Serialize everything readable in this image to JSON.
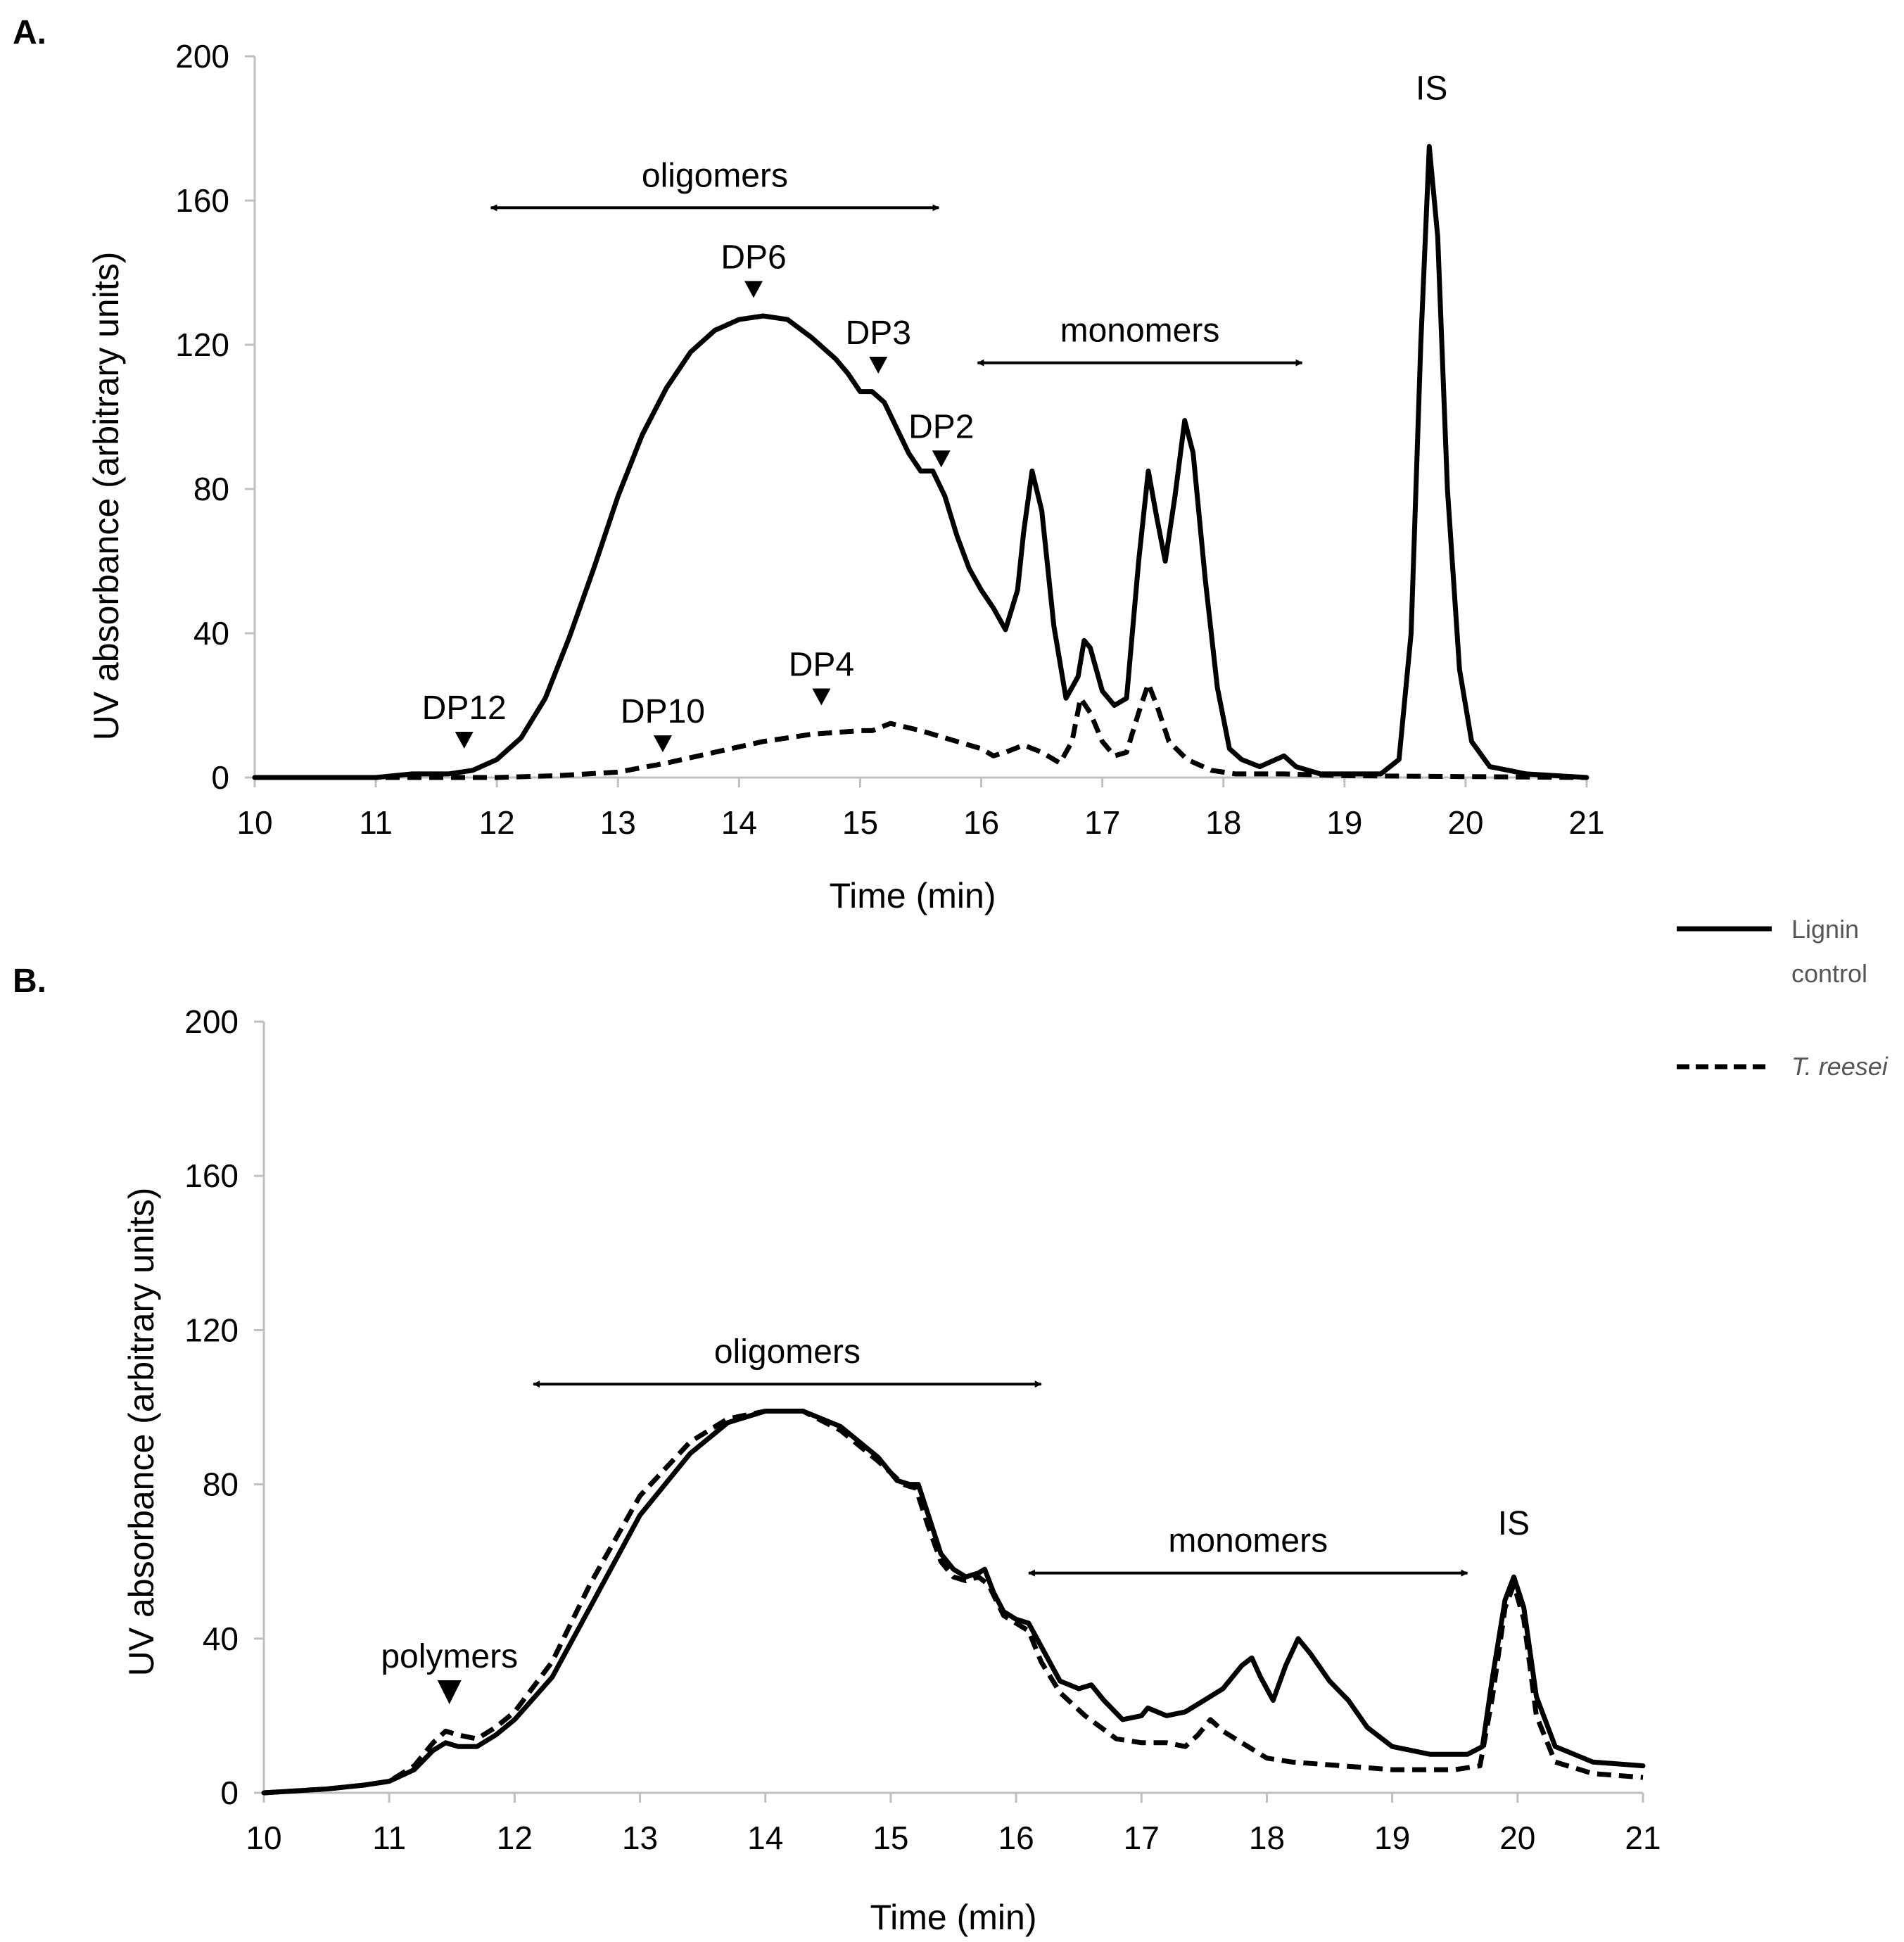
{
  "chart_data": [
    {
      "panel": "A.",
      "type": "line",
      "xlabel": "Time (min)",
      "ylabel": "UV absorbance (arbitrary units)",
      "xlim": [
        10,
        21
      ],
      "ylim": [
        0,
        200
      ],
      "xticks": [
        10,
        11,
        12,
        13,
        14,
        15,
        16,
        17,
        18,
        19,
        20,
        21
      ],
      "yticks": [
        0,
        40,
        80,
        120,
        160,
        200
      ],
      "series": [
        {
          "name": "Lignin control",
          "style": "solid",
          "points": [
            [
              10,
              0
            ],
            [
              11,
              0
            ],
            [
              11.3,
              1
            ],
            [
              11.6,
              1
            ],
            [
              11.8,
              2
            ],
            [
              12,
              5
            ],
            [
              12.2,
              11
            ],
            [
              12.4,
              22
            ],
            [
              12.6,
              39
            ],
            [
              12.8,
              58
            ],
            [
              13,
              78
            ],
            [
              13.2,
              95
            ],
            [
              13.4,
              108
            ],
            [
              13.6,
              118
            ],
            [
              13.8,
              124
            ],
            [
              14,
              127
            ],
            [
              14.2,
              128
            ],
            [
              14.4,
              127
            ],
            [
              14.6,
              122
            ],
            [
              14.8,
              116
            ],
            [
              14.9,
              112
            ],
            [
              15,
              107
            ],
            [
              15.1,
              107
            ],
            [
              15.2,
              104
            ],
            [
              15.3,
              97
            ],
            [
              15.4,
              90
            ],
            [
              15.5,
              85
            ],
            [
              15.6,
              85
            ],
            [
              15.7,
              78
            ],
            [
              15.8,
              67
            ],
            [
              15.9,
              58
            ],
            [
              16,
              52
            ],
            [
              16.1,
              47
            ],
            [
              16.2,
              41
            ],
            [
              16.3,
              52
            ],
            [
              16.35,
              68
            ],
            [
              16.42,
              85
            ],
            [
              16.5,
              74
            ],
            [
              16.6,
              42
            ],
            [
              16.7,
              22
            ],
            [
              16.8,
              28
            ],
            [
              16.85,
              38
            ],
            [
              16.9,
              36
            ],
            [
              17,
              24
            ],
            [
              17.1,
              20
            ],
            [
              17.2,
              22
            ],
            [
              17.3,
              60
            ],
            [
              17.38,
              85
            ],
            [
              17.45,
              72
            ],
            [
              17.52,
              60
            ],
            [
              17.6,
              78
            ],
            [
              17.68,
              99
            ],
            [
              17.75,
              90
            ],
            [
              17.85,
              55
            ],
            [
              17.95,
              25
            ],
            [
              18.05,
              8
            ],
            [
              18.15,
              5
            ],
            [
              18.3,
              3
            ],
            [
              18.5,
              6
            ],
            [
              18.6,
              3
            ],
            [
              18.8,
              1
            ],
            [
              19,
              1
            ],
            [
              19.3,
              1
            ],
            [
              19.45,
              5
            ],
            [
              19.55,
              40
            ],
            [
              19.63,
              120
            ],
            [
              19.7,
              175
            ],
            [
              19.77,
              150
            ],
            [
              19.85,
              80
            ],
            [
              19.95,
              30
            ],
            [
              20.05,
              10
            ],
            [
              20.2,
              3
            ],
            [
              20.5,
              1
            ],
            [
              21,
              0
            ]
          ]
        },
        {
          "name": "T. reesei",
          "style": "dashed",
          "points": [
            [
              10,
              0
            ],
            [
              12,
              0
            ],
            [
              12.5,
              0.5
            ],
            [
              13,
              1.5
            ],
            [
              13.4,
              4
            ],
            [
              13.8,
              7
            ],
            [
              14.2,
              10
            ],
            [
              14.6,
              12
            ],
            [
              15,
              13
            ],
            [
              15.1,
              13
            ],
            [
              15.25,
              15
            ],
            [
              15.5,
              13
            ],
            [
              15.8,
              10
            ],
            [
              16,
              8
            ],
            [
              16.1,
              6
            ],
            [
              16.2,
              7
            ],
            [
              16.35,
              9
            ],
            [
              16.5,
              7
            ],
            [
              16.65,
              4
            ],
            [
              16.75,
              10
            ],
            [
              16.82,
              22
            ],
            [
              16.9,
              18
            ],
            [
              17,
              10
            ],
            [
              17.1,
              6
            ],
            [
              17.2,
              7
            ],
            [
              17.3,
              18
            ],
            [
              17.38,
              26
            ],
            [
              17.45,
              20
            ],
            [
              17.55,
              10
            ],
            [
              17.7,
              5
            ],
            [
              17.9,
              2
            ],
            [
              18.1,
              1
            ],
            [
              18.5,
              1
            ],
            [
              19,
              0.5
            ],
            [
              21,
              0
            ]
          ]
        }
      ],
      "annotations": [
        {
          "text": "oligomers",
          "type": "range",
          "x1": 11.95,
          "x2": 15.65,
          "y": 158
        },
        {
          "text": "monomers",
          "type": "range",
          "x1": 15.97,
          "x2": 18.65,
          "y": 115
        },
        {
          "text": "IS",
          "type": "label",
          "x": 19.72,
          "y": 188
        },
        {
          "text": "DP6",
          "type": "marker",
          "x": 14.12,
          "y": 133
        },
        {
          "text": "DP3",
          "type": "marker",
          "x": 15.15,
          "y": 112
        },
        {
          "text": "DP2",
          "type": "marker",
          "x": 15.67,
          "y": 86
        },
        {
          "text": "DP12",
          "type": "marker",
          "x": 11.73,
          "y": 8
        },
        {
          "text": "DP10",
          "type": "marker",
          "x": 13.37,
          "y": 7
        },
        {
          "text": "DP4",
          "type": "marker",
          "x": 14.68,
          "y": 20
        }
      ]
    },
    {
      "panel": "B.",
      "type": "line",
      "xlabel": "Time (min)",
      "ylabel": "UV absorbance (arbitrary units)",
      "xlim": [
        10,
        21
      ],
      "ylim": [
        0,
        200
      ],
      "xticks": [
        10,
        11,
        12,
        13,
        14,
        15,
        16,
        17,
        18,
        19,
        20,
        21
      ],
      "yticks": [
        0,
        40,
        80,
        120,
        160,
        200
      ],
      "series": [
        {
          "name": "Lignin control",
          "style": "solid",
          "points": [
            [
              10,
              0
            ],
            [
              10.5,
              1
            ],
            [
              10.8,
              2
            ],
            [
              11,
              3
            ],
            [
              11.2,
              6
            ],
            [
              11.35,
              11
            ],
            [
              11.45,
              13
            ],
            [
              11.55,
              12
            ],
            [
              11.7,
              12
            ],
            [
              11.85,
              15
            ],
            [
              12,
              19
            ],
            [
              12.3,
              30
            ],
            [
              12.6,
              48
            ],
            [
              13,
              72
            ],
            [
              13.4,
              88
            ],
            [
              13.7,
              96
            ],
            [
              14,
              99
            ],
            [
              14.3,
              99
            ],
            [
              14.6,
              95
            ],
            [
              14.9,
              87
            ],
            [
              15.05,
              81
            ],
            [
              15.15,
              80
            ],
            [
              15.22,
              80
            ],
            [
              15.3,
              72
            ],
            [
              15.4,
              62
            ],
            [
              15.5,
              58
            ],
            [
              15.6,
              56
            ],
            [
              15.7,
              57
            ],
            [
              15.75,
              58
            ],
            [
              15.82,
              52
            ],
            [
              15.9,
              47
            ],
            [
              16,
              45
            ],
            [
              16.1,
              44
            ],
            [
              16.2,
              38
            ],
            [
              16.35,
              29
            ],
            [
              16.5,
              27
            ],
            [
              16.6,
              28
            ],
            [
              16.7,
              24
            ],
            [
              16.85,
              19
            ],
            [
              17,
              20
            ],
            [
              17.05,
              22
            ],
            [
              17.2,
              20
            ],
            [
              17.35,
              21
            ],
            [
              17.5,
              24
            ],
            [
              17.65,
              27
            ],
            [
              17.8,
              33
            ],
            [
              17.88,
              35
            ],
            [
              17.95,
              30
            ],
            [
              18.05,
              24
            ],
            [
              18.15,
              33
            ],
            [
              18.25,
              40
            ],
            [
              18.35,
              36
            ],
            [
              18.5,
              29
            ],
            [
              18.65,
              24
            ],
            [
              18.8,
              17
            ],
            [
              19,
              12
            ],
            [
              19.3,
              10
            ],
            [
              19.6,
              10
            ],
            [
              19.72,
              12
            ],
            [
              19.8,
              30
            ],
            [
              19.9,
              50
            ],
            [
              19.97,
              56
            ],
            [
              20.05,
              48
            ],
            [
              20.15,
              25
            ],
            [
              20.3,
              12
            ],
            [
              20.6,
              8
            ],
            [
              21,
              7
            ]
          ]
        },
        {
          "name": "T. reesei",
          "style": "dashed",
          "points": [
            [
              10,
              0
            ],
            [
              10.5,
              1
            ],
            [
              10.8,
              2
            ],
            [
              11,
              3
            ],
            [
              11.2,
              7
            ],
            [
              11.35,
              13
            ],
            [
              11.45,
              16
            ],
            [
              11.55,
              15
            ],
            [
              11.7,
              14
            ],
            [
              11.85,
              17
            ],
            [
              12,
              21
            ],
            [
              12.3,
              34
            ],
            [
              12.6,
              54
            ],
            [
              13,
              77
            ],
            [
              13.4,
              91
            ],
            [
              13.7,
              97
            ],
            [
              14,
              99
            ],
            [
              14.3,
              99
            ],
            [
              14.6,
              94
            ],
            [
              14.9,
              86
            ],
            [
              15.1,
              80
            ],
            [
              15.2,
              79
            ],
            [
              15.3,
              69
            ],
            [
              15.4,
              60
            ],
            [
              15.5,
              56
            ],
            [
              15.6,
              55
            ],
            [
              15.7,
              56
            ],
            [
              15.78,
              54
            ],
            [
              15.9,
              46
            ],
            [
              16,
              44
            ],
            [
              16.1,
              42
            ],
            [
              16.2,
              34
            ],
            [
              16.35,
              26
            ],
            [
              16.55,
              20
            ],
            [
              16.8,
              14
            ],
            [
              17,
              13
            ],
            [
              17.2,
              13
            ],
            [
              17.35,
              12
            ],
            [
              17.45,
              15
            ],
            [
              17.55,
              19
            ],
            [
              17.65,
              16
            ],
            [
              17.8,
              13
            ],
            [
              18,
              9
            ],
            [
              18.2,
              8
            ],
            [
              18.6,
              7
            ],
            [
              19,
              6
            ],
            [
              19.5,
              6
            ],
            [
              19.7,
              7
            ],
            [
              19.8,
              25
            ],
            [
              19.9,
              48
            ],
            [
              19.97,
              54
            ],
            [
              20.05,
              45
            ],
            [
              20.15,
              20
            ],
            [
              20.3,
              8
            ],
            [
              20.6,
              5
            ],
            [
              21,
              4
            ]
          ]
        }
      ],
      "annotations": [
        {
          "text": "oligomers",
          "type": "range",
          "x1": 12.15,
          "x2": 16.2,
          "y": 106
        },
        {
          "text": "monomers",
          "type": "range",
          "x1": 16.1,
          "x2": 19.6,
          "y": 57
        },
        {
          "text": "IS",
          "type": "label",
          "x": 19.97,
          "y": 67
        },
        {
          "text": "polymers",
          "type": "marker",
          "x": 11.48,
          "y": 23
        }
      ]
    }
  ],
  "legend": {
    "position": "right",
    "entries": [
      {
        "lines": [
          "Lignin",
          "control"
        ],
        "style": "solid"
      },
      {
        "lines": [
          "T. reesei"
        ],
        "style": "dashed",
        "italic": true
      }
    ]
  }
}
